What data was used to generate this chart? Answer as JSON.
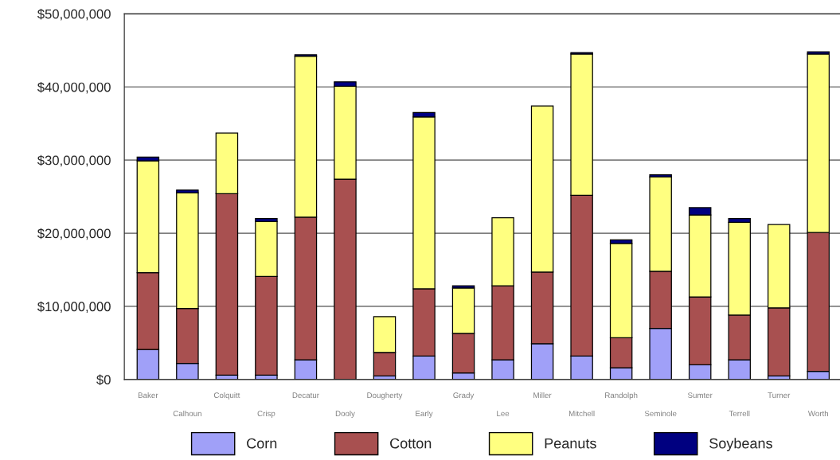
{
  "chart_data": {
    "type": "bar",
    "stacked": true,
    "categories": [
      "Baker",
      "Calhoun",
      "Colquitt",
      "Crisp",
      "Decatur",
      "Dooly",
      "Dougherty",
      "Early",
      "Grady",
      "Lee",
      "Miller",
      "Mitchell",
      "Randolph",
      "Seminole",
      "Sumter",
      "Terrell",
      "Turner",
      "Worth"
    ],
    "series": [
      {
        "name": "Corn",
        "color": "#a0a0f8",
        "values": [
          4100000,
          2200000,
          600000,
          600000,
          2700000,
          null,
          500000,
          3200000,
          900000,
          2700000,
          4900000,
          3200000,
          1600000,
          7000000,
          2000000,
          2700000,
          500000,
          1100000
        ]
      },
      {
        "name": "Cotton",
        "color": "#a85050",
        "values": [
          10500000,
          7500000,
          24800000,
          13500000,
          19500000,
          27400000,
          3200000,
          9200000,
          5400000,
          10100000,
          9800000,
          22000000,
          4100000,
          7800000,
          9300000,
          6100000,
          9300000,
          19000000
        ]
      },
      {
        "name": "Peanuts",
        "color": "#ffff80",
        "values": [
          15300000,
          15800000,
          8300000,
          7500000,
          22000000,
          12700000,
          4900000,
          23500000,
          6200000,
          9300000,
          22700000,
          19300000,
          12900000,
          12900000,
          11200000,
          12700000,
          11400000,
          24400000
        ]
      },
      {
        "name": "Soybeans",
        "color": "#000080",
        "values": [
          500000,
          400000,
          null,
          400000,
          200000,
          600000,
          null,
          600000,
          300000,
          null,
          null,
          200000,
          500000,
          300000,
          1000000,
          500000,
          null,
          300000
        ]
      }
    ],
    "ylim": [
      0,
      50000000
    ],
    "yticks": [
      {
        "value": 0,
        "label": "$0"
      },
      {
        "value": 10000000,
        "label": "$10,000,000"
      },
      {
        "value": 20000000,
        "label": "$20,000,000"
      },
      {
        "value": 30000000,
        "label": "$30,000,000"
      },
      {
        "value": 40000000,
        "label": "$40,000,000"
      },
      {
        "value": 50000000,
        "label": "$50,000,000"
      }
    ],
    "grid": "y",
    "legend": "bottom"
  }
}
